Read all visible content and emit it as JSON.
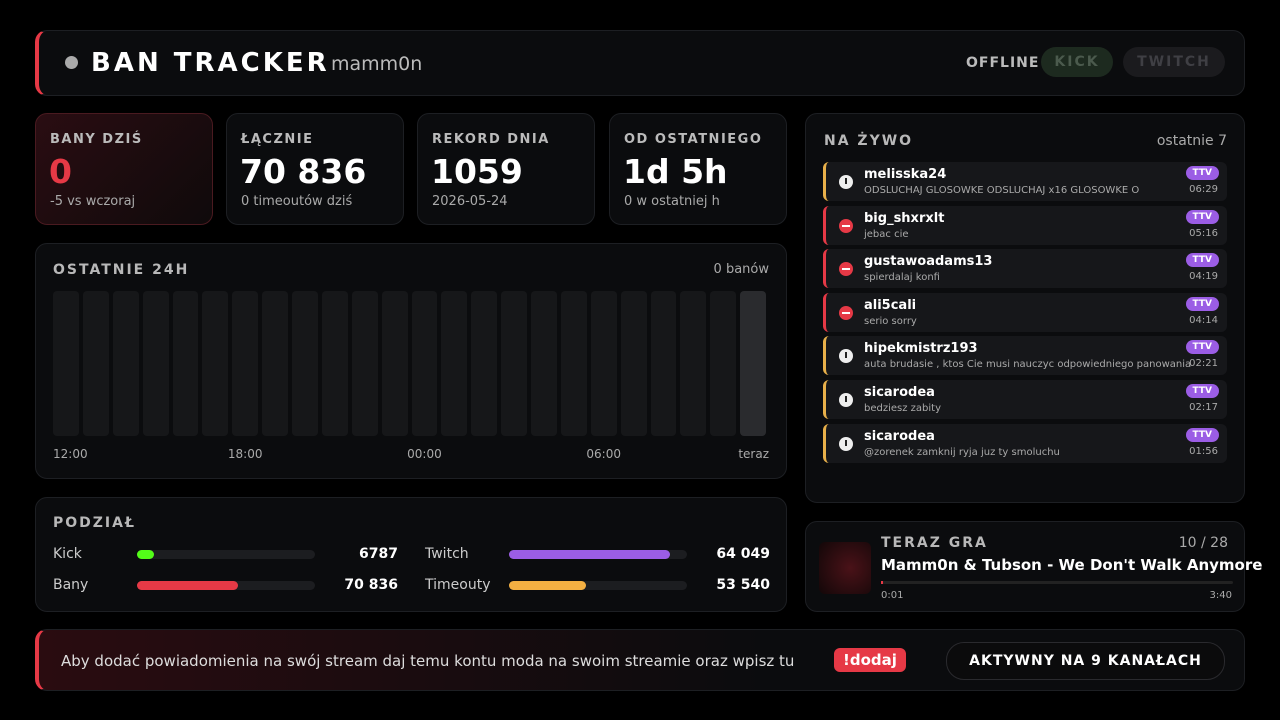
{
  "header": {
    "title": "BAN TRACKER",
    "channel": "mamm0n",
    "status": "OFFLINE",
    "buttons": [
      "KICK",
      "TWITCH"
    ]
  },
  "stats": [
    {
      "label": "BANY DZIŚ",
      "value": "0",
      "sub": "-5 vs wczoraj",
      "highlight": true
    },
    {
      "label": "ŁĄCZNIE",
      "value": "70 836",
      "sub": "0 timeoutów dziś",
      "highlight": false
    },
    {
      "label": "REKORD DNIA",
      "value": "1059",
      "sub": "2026-05-24",
      "highlight": false
    },
    {
      "label": "OD OSTATNIEGO",
      "value": "1d 5h",
      "sub": "0 w ostatniej h",
      "highlight": false
    }
  ],
  "last24h": {
    "title": "OSTATNIE 24H",
    "summary": "0 banów",
    "values": [
      0,
      0,
      0,
      0,
      0,
      0,
      0,
      0,
      0,
      0,
      0,
      0,
      0,
      0,
      0,
      0,
      0,
      0,
      0,
      0,
      0,
      0,
      0,
      0
    ],
    "ticks": [
      "12:00",
      "18:00",
      "00:00",
      "06:00",
      "teraz"
    ]
  },
  "split": {
    "title": "PODZIAŁ",
    "rows": [
      [
        {
          "name": "Kick",
          "value": 6787,
          "color": "#53fc18"
        },
        {
          "name": "Twitch",
          "value": 64049,
          "label": "64 049",
          "color": "#9b5de5"
        }
      ],
      [
        {
          "name": "Bany",
          "value": 70836,
          "label": "70 836",
          "color": "#e63946"
        },
        {
          "name": "Timeouty",
          "value": 53540,
          "label": "53 540",
          "color": "#f4b042"
        }
      ]
    ]
  },
  "live": {
    "title": "NA ŻYWO",
    "subtitle": "ostatnie 7",
    "items": [
      {
        "kind": "timeout",
        "user": "melisska24",
        "message": "ODSLUCHAJ GLOSOWKE ODSLUCHAJ x16 GLOSOWKE O",
        "badge": "TTV",
        "time": "06:29"
      },
      {
        "kind": "ban",
        "user": "big_shxrxlt",
        "message": "jebac cie",
        "badge": "TTV",
        "time": "05:16"
      },
      {
        "kind": "ban",
        "user": "gustawoadams13",
        "message": "spierdalaj konfi",
        "badge": "TTV",
        "time": "04:19"
      },
      {
        "kind": "ban",
        "user": "ali5cali",
        "message": "serio sorry",
        "badge": "TTV",
        "time": "04:14"
      },
      {
        "kind": "timeout",
        "user": "hipekmistrz193",
        "message": "auta brudasie , ktos Cie musi nauczyc odpowiedniego panowania",
        "badge": "TTV",
        "time": "02:21"
      },
      {
        "kind": "timeout",
        "user": "sicarodea",
        "message": "bedziesz zabity",
        "badge": "TTV",
        "time": "02:17"
      },
      {
        "kind": "timeout",
        "user": "sicarodea",
        "message": "@zorenek zamknij ryja juz ty smoluchu",
        "badge": "TTV",
        "time": "01:56"
      }
    ]
  },
  "now_playing": {
    "title": "TERAZ GRA",
    "position": "10 / 28",
    "song": "Mamm0n & Tubson - We Don't Walk Anymore",
    "elapsed": "0:01",
    "duration": "3:40"
  },
  "footer": {
    "text": "Aby dodać powiadomienia na swój stream daj temu kontu moda na swoim streamie oraz wpisz tu",
    "command": "!dodaj",
    "status": "AKTYWNY NA 9 KANAŁACH"
  }
}
